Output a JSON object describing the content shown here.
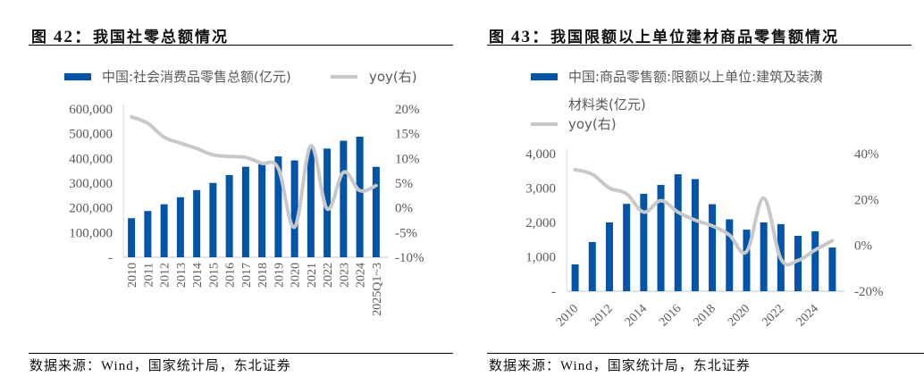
{
  "figures": [
    {
      "fig_label": "图",
      "fig_num": "42：",
      "title": "我国社零总额情况",
      "source": "数据来源：Wind，国家统计局，东北证券"
    },
    {
      "fig_label": "图",
      "fig_num": "43：",
      "title": "我国限额以上单位建材商品零售额情况",
      "source": "数据来源：Wind，国家统计局，东北证券"
    }
  ],
  "colors": {
    "bar": "#0055A8",
    "line": "#C8C8C8",
    "axis": "#D9D9D9",
    "text": "#595959"
  },
  "chart_data": [
    {
      "type": "bar+line",
      "title": "我国社零总额情况",
      "categories": [
        "2010",
        "2011",
        "2012",
        "2013",
        "2014",
        "2015",
        "2016",
        "2017",
        "2018",
        "2019",
        "2020",
        "2021",
        "2022",
        "2023",
        "2024",
        "2025Q1~3"
      ],
      "series": [
        {
          "name": "中国:社会消费品零售总额(亿元)",
          "type": "bar",
          "axis": "left",
          "values": [
            158008,
            187206,
            214433,
            242843,
            271896,
            300931,
            332316,
            366262,
            380987,
            408017,
            391981,
            440823,
            439733,
            471495,
            487895,
            365877
          ]
        },
        {
          "name": "yoy(右)",
          "type": "line",
          "axis": "right",
          "values": [
            18.4,
            17.1,
            14.3,
            13.1,
            12.0,
            10.7,
            10.4,
            10.2,
            9.0,
            8.0,
            -3.9,
            12.5,
            -0.2,
            7.2,
            3.5,
            4.5
          ]
        }
      ],
      "y_left": {
        "ylim": [
          0,
          600000
        ],
        "ticks": [
          "-",
          "100,000",
          "200,000",
          "300,000",
          "400,000",
          "500,000",
          "600,000"
        ]
      },
      "y_right": {
        "ylim": [
          -10,
          20
        ],
        "ticks": [
          "-10%",
          "-5%",
          "0%",
          "5%",
          "10%",
          "15%",
          "20%"
        ]
      },
      "x_tick_rotation": "vertical",
      "legend": {
        "placement": "top",
        "items": [
          "中国:社会消费品零售总额(亿元)",
          "yoy(右)"
        ]
      },
      "grid": false
    },
    {
      "type": "bar+line",
      "title": "我国限额以上单位建材商品零售额情况",
      "categories": [
        "2010",
        "2011",
        "2012",
        "2013",
        "2014",
        "2015",
        "2016",
        "2017",
        "2018",
        "2019",
        "2020",
        "2021",
        "2022",
        "2023",
        "2024",
        "2025"
      ],
      "x_tick_labels": [
        "2010",
        "2012",
        "2014",
        "2016",
        "2018",
        "2020",
        "2022",
        "2024"
      ],
      "series": [
        {
          "name": "中国:商品零售额:限额以上单位:建筑及装潢材料类(亿元)",
          "type": "bar",
          "axis": "left",
          "values": [
            780,
            1430,
            2000,
            2540,
            2830,
            3090,
            3400,
            3260,
            2530,
            2090,
            1790,
            2000,
            1950,
            1610,
            1740,
            1270
          ]
        },
        {
          "name": "yoy(右)",
          "type": "line",
          "axis": "right",
          "values": [
            33,
            31,
            25,
            22.5,
            14.5,
            19.5,
            14.5,
            11,
            8.5,
            4.5,
            -2.7,
            20.6,
            -5.9,
            -6.6,
            -2,
            2
          ]
        }
      ],
      "y_left": {
        "ylim": [
          0,
          4000
        ],
        "ticks": [
          "-",
          "1,000",
          "2,000",
          "3,000",
          "4,000"
        ]
      },
      "y_right": {
        "ylim": [
          -20,
          40
        ],
        "ticks": [
          "-20%",
          "0%",
          "20%",
          "40%"
        ]
      },
      "x_tick_rotation": "diagonal",
      "legend": {
        "placement": "top",
        "items": [
          "中国:商品零售额:限额以上单位:建筑及装潢",
          "材料类(亿元)",
          "yoy(右)"
        ]
      },
      "grid": false
    }
  ]
}
